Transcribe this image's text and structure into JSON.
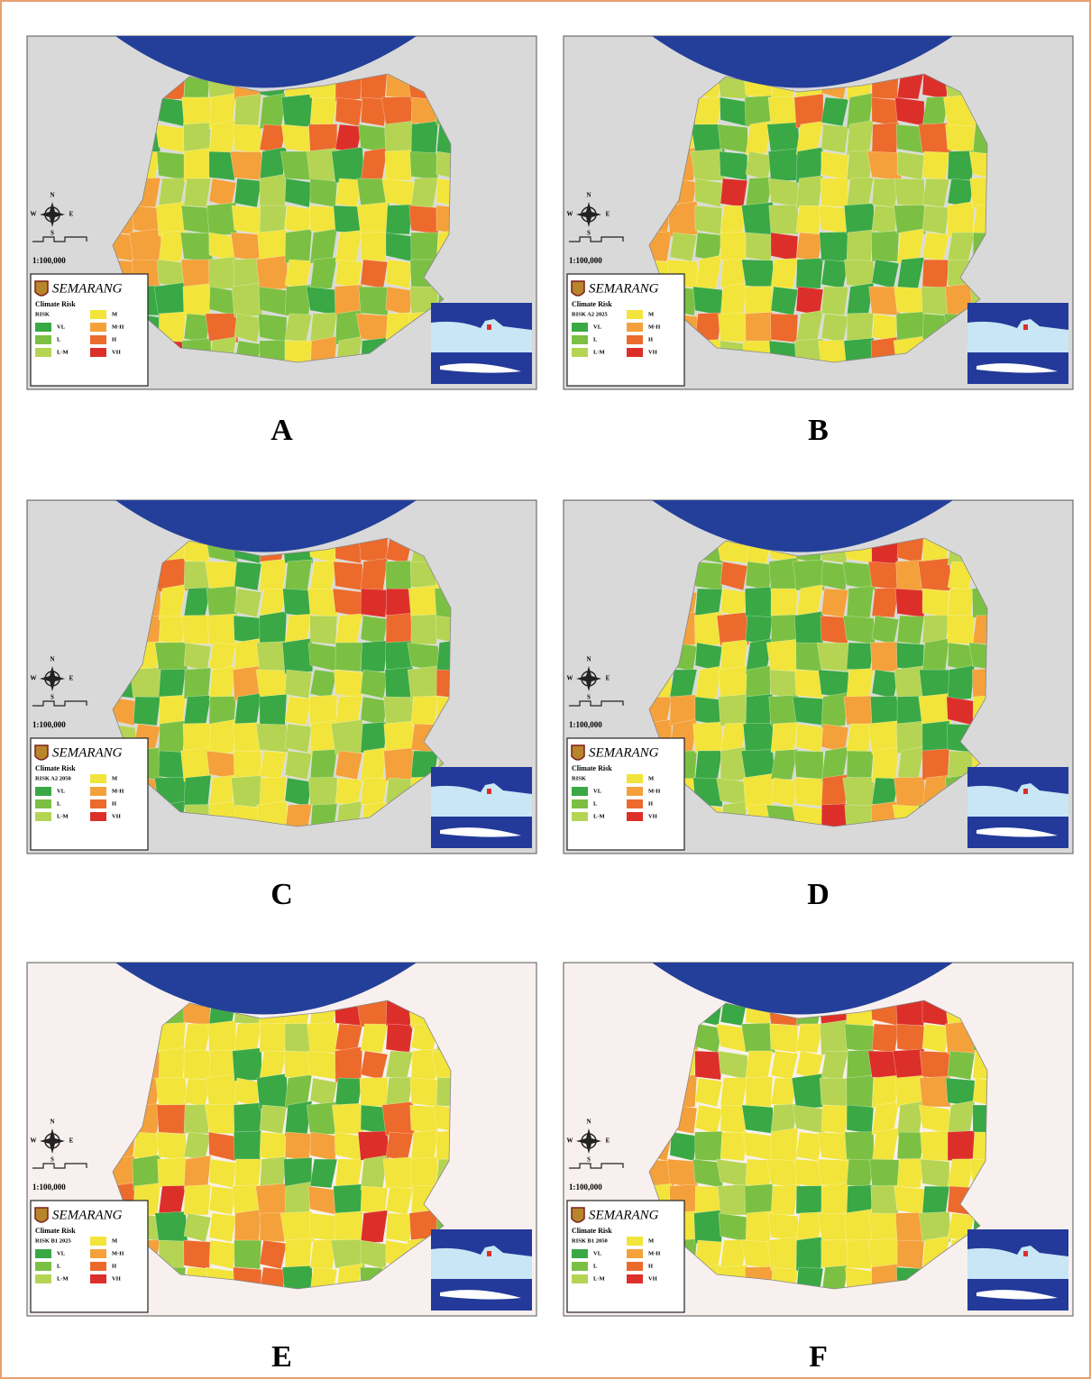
{
  "figure": {
    "panels": [
      {
        "label": "A",
        "map_title": "SEMARANG",
        "legend_title": "Climate Risk",
        "legend_subtitle": "RISK",
        "scale": "1:100,000",
        "background": "#d9d9d9"
      },
      {
        "label": "B",
        "map_title": "SEMARANG",
        "legend_title": "Climate Risk",
        "legend_subtitle": "RISK A2 2025",
        "scale": "1:100,000",
        "background": "#d9d9d9"
      },
      {
        "label": "C",
        "map_title": "SEMARANG",
        "legend_title": "Climate Risk",
        "legend_subtitle": "RISK A2 2050",
        "scale": "1:100,000",
        "background": "#d9d9d9"
      },
      {
        "label": "D",
        "map_title": "SEMARANG",
        "legend_title": "Climate Risk",
        "legend_subtitle": "RISK",
        "scale": "1:100,000",
        "background": "#d9d9d9"
      },
      {
        "label": "E",
        "map_title": "SEMARANG",
        "legend_title": "Climate Risk",
        "legend_subtitle": "RISK B1 2025",
        "scale": "1:100,000",
        "background": "#f8f0ee"
      },
      {
        "label": "F",
        "map_title": "SEMARANG",
        "legend_title": "Climate Risk",
        "legend_subtitle": "RISK B1 2050",
        "scale": "1:100,000",
        "background": "#f8f0ee"
      }
    ],
    "legend_items": [
      {
        "code": "VL",
        "color": "#3aa845"
      },
      {
        "code": "L",
        "color": "#7cc043"
      },
      {
        "code": "L-M",
        "color": "#b5d453"
      },
      {
        "code": "M",
        "color": "#f2e43a"
      },
      {
        "code": "M-H",
        "color": "#f4a13b"
      },
      {
        "code": "H",
        "color": "#ec6a2c"
      },
      {
        "code": "VH",
        "color": "#dd2f2a"
      }
    ],
    "compass": [
      "N",
      "E",
      "S",
      "W"
    ]
  }
}
